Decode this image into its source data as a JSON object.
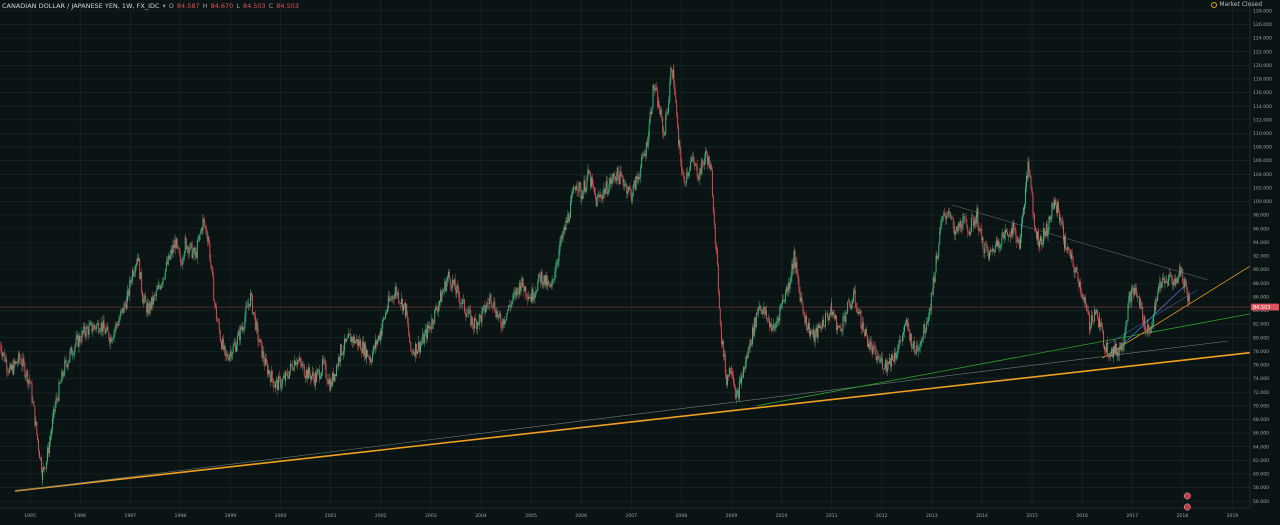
{
  "header": {
    "symbol": "CANADIAN DOLLAR / JAPANESE YEN, 1W, FX_IDC",
    "chevron": "▾",
    "o_label": "O",
    "o_value": "84.587",
    "h_label": "H",
    "h_value": "84.670",
    "l_label": "L",
    "l_value": "84.503",
    "c_label": "C",
    "c_value": "84.503"
  },
  "market_status": {
    "icon": "clock-icon",
    "text": "Market Closed"
  },
  "colors": {
    "background": "#0b1414",
    "up": "#3fbf86",
    "down": "#e0525a",
    "grid": "#1b2a2a",
    "orange_trend": "#f0a020",
    "green_trend": "#2fa02f",
    "blue_trend": "#4a78d8",
    "gray_trend": "#6e7a7a"
  },
  "chart_data": {
    "type": "candlestick",
    "title": "CANADIAN DOLLAR / JAPANESE YEN, 1W, FX_IDC",
    "x_ticks": [
      "1995",
      "1996",
      "1997",
      "1998",
      "1999",
      "2000",
      "2001",
      "2002",
      "2003",
      "2004",
      "2005",
      "2006",
      "2007",
      "2008",
      "2009",
      "2010",
      "2011",
      "2012",
      "2013",
      "2014",
      "2015",
      "2016",
      "2017",
      "2018",
      "2019"
    ],
    "y_ticks": [
      56,
      58,
      60,
      62,
      64,
      66,
      68,
      70,
      72,
      74,
      76,
      78,
      80,
      82,
      84,
      86,
      88,
      90,
      92,
      94,
      96,
      98,
      100,
      102,
      104,
      106,
      108,
      110,
      112,
      114,
      116,
      118,
      120,
      122,
      124,
      126,
      128
    ],
    "y_tick_labels": [
      "56.000",
      "58.000",
      "60.000",
      "62.000",
      "64.000",
      "66.000",
      "68.000",
      "70.000",
      "72.000",
      "74.000",
      "76.000",
      "78.000",
      "80.000",
      "82.000",
      "84.000",
      "86.000",
      "88.000",
      "90.000",
      "92.000",
      "94.000",
      "96.000",
      "98.000",
      "100.000",
      "102.000",
      "104.000",
      "106.000",
      "108.000",
      "110.000",
      "112.000",
      "114.000",
      "116.000",
      "118.000",
      "120.000",
      "122.000",
      "124.000",
      "126.000",
      "128.000"
    ],
    "ylim": [
      55,
      129
    ],
    "xlim": [
      1994.4,
      2019.35
    ],
    "last_price": 84.503,
    "last_price_label": "84.503",
    "grid": true,
    "series": [
      {
        "key": "weekly-closes",
        "points": [
          [
            1994.4,
            79.0
          ],
          [
            1994.6,
            75.0
          ],
          [
            1994.8,
            77.0
          ],
          [
            1995.0,
            73.5
          ],
          [
            1995.15,
            65.0
          ],
          [
            1995.25,
            60.0
          ],
          [
            1995.35,
            63.0
          ],
          [
            1995.5,
            70.0
          ],
          [
            1995.7,
            76.0
          ],
          [
            1995.9,
            79.0
          ],
          [
            1996.1,
            81.0
          ],
          [
            1996.4,
            82.0
          ],
          [
            1996.6,
            80.0
          ],
          [
            1996.8,
            83.0
          ],
          [
            1996.95,
            86.0
          ],
          [
            1997.05,
            90.0
          ],
          [
            1997.15,
            92.0
          ],
          [
            1997.25,
            86.0
          ],
          [
            1997.35,
            84.0
          ],
          [
            1997.5,
            86.0
          ],
          [
            1997.7,
            90.0
          ],
          [
            1997.9,
            94.0
          ],
          [
            1998.0,
            91.0
          ],
          [
            1998.1,
            94.0
          ],
          [
            1998.3,
            92.0
          ],
          [
            1998.45,
            97.0
          ],
          [
            1998.55,
            95.0
          ],
          [
            1998.7,
            84.0
          ],
          [
            1998.8,
            80.0
          ],
          [
            1998.9,
            77.0
          ],
          [
            1999.1,
            79.0
          ],
          [
            1999.25,
            82.0
          ],
          [
            1999.4,
            86.0
          ],
          [
            1999.55,
            80.0
          ],
          [
            1999.7,
            76.0
          ],
          [
            1999.9,
            73.0
          ],
          [
            2000.1,
            74.0
          ],
          [
            2000.3,
            77.0
          ],
          [
            2000.5,
            75.0
          ],
          [
            2000.7,
            74.0
          ],
          [
            2000.85,
            76.0
          ],
          [
            2001.0,
            73.0
          ],
          [
            2001.2,
            78.0
          ],
          [
            2001.4,
            80.0
          ],
          [
            2001.6,
            79.0
          ],
          [
            2001.8,
            77.0
          ],
          [
            2002.0,
            81.0
          ],
          [
            2002.15,
            85.0
          ],
          [
            2002.3,
            87.0
          ],
          [
            2002.5,
            84.0
          ],
          [
            2002.6,
            78.0
          ],
          [
            2002.8,
            79.0
          ],
          [
            2003.0,
            82.0
          ],
          [
            2003.2,
            86.0
          ],
          [
            2003.35,
            89.0
          ],
          [
            2003.5,
            87.0
          ],
          [
            2003.7,
            84.0
          ],
          [
            2003.85,
            82.0
          ],
          [
            2004.0,
            83.0
          ],
          [
            2004.2,
            86.0
          ],
          [
            2004.4,
            82.0
          ],
          [
            2004.6,
            85.0
          ],
          [
            2004.8,
            88.0
          ],
          [
            2005.0,
            86.0
          ],
          [
            2005.2,
            89.0
          ],
          [
            2005.4,
            87.0
          ],
          [
            2005.5,
            91.0
          ],
          [
            2005.6,
            94.0
          ],
          [
            2005.75,
            98.0
          ],
          [
            2005.9,
            103.0
          ],
          [
            2006.0,
            101.0
          ],
          [
            2006.15,
            104.0
          ],
          [
            2006.3,
            100.0
          ],
          [
            2006.5,
            102.0
          ],
          [
            2006.7,
            104.0
          ],
          [
            2006.85,
            103.0
          ],
          [
            2007.0,
            101.0
          ],
          [
            2007.15,
            104.0
          ],
          [
            2007.3,
            108.0
          ],
          [
            2007.45,
            117.0
          ],
          [
            2007.55,
            114.0
          ],
          [
            2007.65,
            110.0
          ],
          [
            2007.75,
            115.0
          ],
          [
            2007.8,
            120.0
          ],
          [
            2007.85,
            118.0
          ],
          [
            2007.95,
            108.0
          ],
          [
            2008.05,
            103.0
          ],
          [
            2008.2,
            106.0
          ],
          [
            2008.35,
            104.0
          ],
          [
            2008.5,
            107.0
          ],
          [
            2008.6,
            104.0
          ],
          [
            2008.7,
            92.0
          ],
          [
            2008.8,
            80.0
          ],
          [
            2008.9,
            74.0
          ],
          [
            2009.0,
            76.0
          ],
          [
            2009.1,
            71.0
          ],
          [
            2009.2,
            74.0
          ],
          [
            2009.4,
            80.0
          ],
          [
            2009.55,
            85.0
          ],
          [
            2009.7,
            83.0
          ],
          [
            2009.85,
            81.0
          ],
          [
            2010.0,
            85.0
          ],
          [
            2010.15,
            88.0
          ],
          [
            2010.25,
            92.0
          ],
          [
            2010.35,
            87.0
          ],
          [
            2010.5,
            82.0
          ],
          [
            2010.65,
            80.0
          ],
          [
            2010.8,
            82.0
          ],
          [
            2011.0,
            84.0
          ],
          [
            2011.15,
            81.0
          ],
          [
            2011.3,
            84.0
          ],
          [
            2011.45,
            86.0
          ],
          [
            2011.6,
            82.0
          ],
          [
            2011.75,
            79.0
          ],
          [
            2011.9,
            77.0
          ],
          [
            2012.1,
            76.0
          ],
          [
            2012.3,
            78.0
          ],
          [
            2012.5,
            82.0
          ],
          [
            2012.65,
            78.0
          ],
          [
            2012.8,
            80.0
          ],
          [
            2012.95,
            84.0
          ],
          [
            2013.1,
            92.0
          ],
          [
            2013.2,
            97.0
          ],
          [
            2013.35,
            99.0
          ],
          [
            2013.45,
            95.0
          ],
          [
            2013.6,
            97.0
          ],
          [
            2013.75,
            96.0
          ],
          [
            2013.9,
            98.0
          ],
          [
            2014.0,
            94.0
          ],
          [
            2014.15,
            92.0
          ],
          [
            2014.3,
            94.0
          ],
          [
            2014.45,
            95.0
          ],
          [
            2014.6,
            96.0
          ],
          [
            2014.75,
            94.0
          ],
          [
            2014.85,
            100.0
          ],
          [
            2014.92,
            105.0
          ],
          [
            2014.98,
            103.0
          ],
          [
            2015.05,
            96.0
          ],
          [
            2015.15,
            94.0
          ],
          [
            2015.3,
            96.0
          ],
          [
            2015.45,
            100.0
          ],
          [
            2015.55,
            98.0
          ],
          [
            2015.65,
            94.0
          ],
          [
            2015.8,
            91.0
          ],
          [
            2015.95,
            88.0
          ],
          [
            2016.05,
            85.0
          ],
          [
            2016.15,
            82.0
          ],
          [
            2016.25,
            84.0
          ],
          [
            2016.35,
            82.0
          ],
          [
            2016.45,
            79.0
          ],
          [
            2016.55,
            78.0
          ],
          [
            2016.7,
            78.0
          ],
          [
            2016.8,
            79.0
          ],
          [
            2016.95,
            86.0
          ],
          [
            2017.05,
            87.0
          ],
          [
            2017.15,
            85.0
          ],
          [
            2017.25,
            82.0
          ],
          [
            2017.35,
            81.0
          ],
          [
            2017.45,
            84.0
          ],
          [
            2017.55,
            88.0
          ],
          [
            2017.65,
            88.0
          ],
          [
            2017.75,
            89.0
          ],
          [
            2017.85,
            88.0
          ],
          [
            2017.95,
            90.0
          ],
          [
            2018.05,
            88.0
          ],
          [
            2018.12,
            86.0
          ],
          [
            2018.15,
            84.5
          ]
        ]
      }
    ],
    "trendlines": [
      {
        "key": "orange-long",
        "color_key": "orange_trend",
        "width": 1.6,
        "from": [
          1994.7,
          57.5
        ],
        "to": [
          2019.35,
          77.8
        ]
      },
      {
        "key": "gray-long",
        "color_key": "gray_trend",
        "width": 0.6,
        "from": [
          1994.7,
          57.5
        ],
        "to": [
          2018.9,
          79.5
        ]
      },
      {
        "key": "green-mid",
        "color_key": "green_trend",
        "width": 0.8,
        "from": [
          2009.5,
          70.0
        ],
        "to": [
          2019.35,
          83.5
        ]
      },
      {
        "key": "orange-short",
        "color_key": "orange_trend",
        "width": 0.7,
        "from": [
          2016.4,
          77.0
        ],
        "to": [
          2019.35,
          90.5
        ]
      },
      {
        "key": "blue-short",
        "color_key": "blue_trend",
        "width": 0.8,
        "from": [
          2016.6,
          77.5
        ],
        "to": [
          2018.1,
          88.0
        ]
      },
      {
        "key": "gray-resistance",
        "color_key": "gray_trend",
        "width": 0.5,
        "from": [
          2013.4,
          99.5
        ],
        "to": [
          2018.5,
          88.5
        ]
      },
      {
        "key": "blue-resistance-2",
        "color_key": "blue_trend",
        "width": 0.5,
        "from": [
          2016.5,
          79.0
        ],
        "to": [
          2018.3,
          87.0
        ]
      }
    ]
  }
}
